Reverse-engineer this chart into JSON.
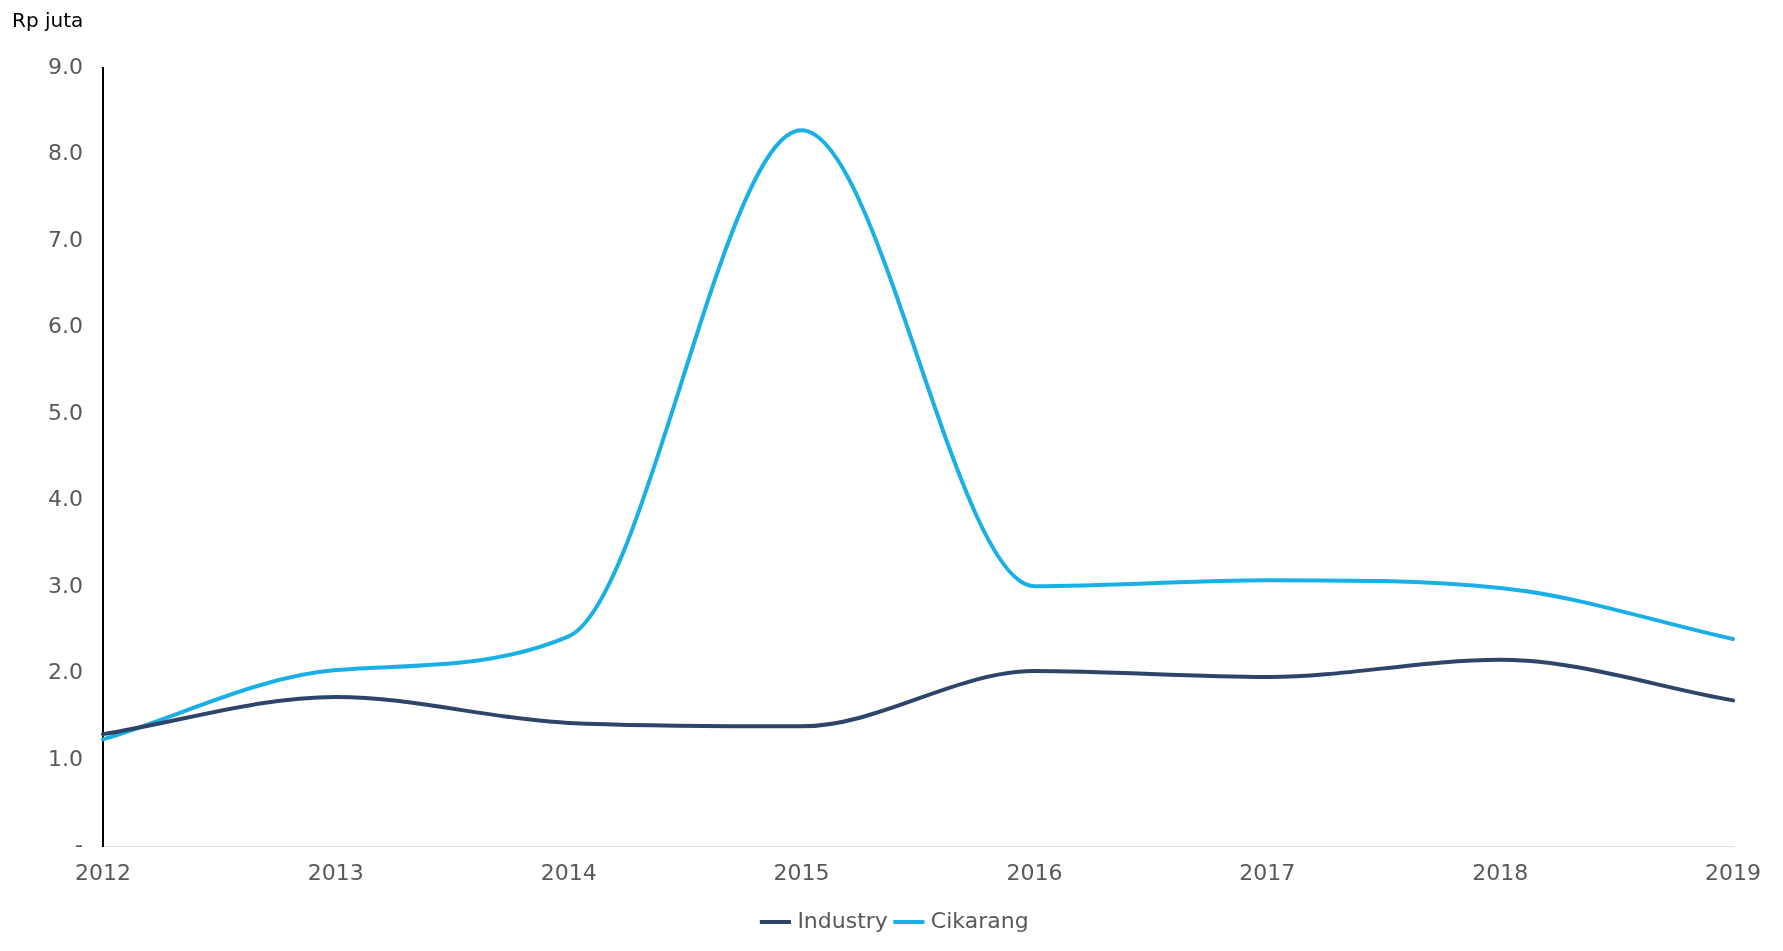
{
  "chart_data": {
    "type": "line",
    "ylabel": "Rp juta",
    "categories": [
      "2012",
      "2013",
      "2014",
      "2015",
      "2016",
      "2017",
      "2018",
      "2019"
    ],
    "series": [
      {
        "name": "Industry",
        "color": "#2e4468",
        "values": [
          1.3,
          1.73,
          1.43,
          1.39,
          2.03,
          1.96,
          2.16,
          1.69
        ]
      },
      {
        "name": "Cikarang",
        "color": "#1ab0e6",
        "values": [
          1.24,
          2.04,
          2.43,
          8.28,
          3.01,
          3.08,
          2.99,
          2.4
        ]
      }
    ],
    "ylim": [
      0,
      9
    ],
    "yticks": [
      {
        "value": 0,
        "label": "-"
      },
      {
        "value": 1,
        "label": "1.0"
      },
      {
        "value": 2,
        "label": "2.0"
      },
      {
        "value": 3,
        "label": "3.0"
      },
      {
        "value": 4,
        "label": "4.0"
      },
      {
        "value": 5,
        "label": "5.0"
      },
      {
        "value": 6,
        "label": "6.0"
      },
      {
        "value": 7,
        "label": "7.0"
      },
      {
        "value": 8,
        "label": "8.0"
      },
      {
        "value": 9,
        "label": "9.0"
      }
    ],
    "grid": false,
    "legend": "bottom",
    "marker": "none",
    "line_style": "solid"
  }
}
